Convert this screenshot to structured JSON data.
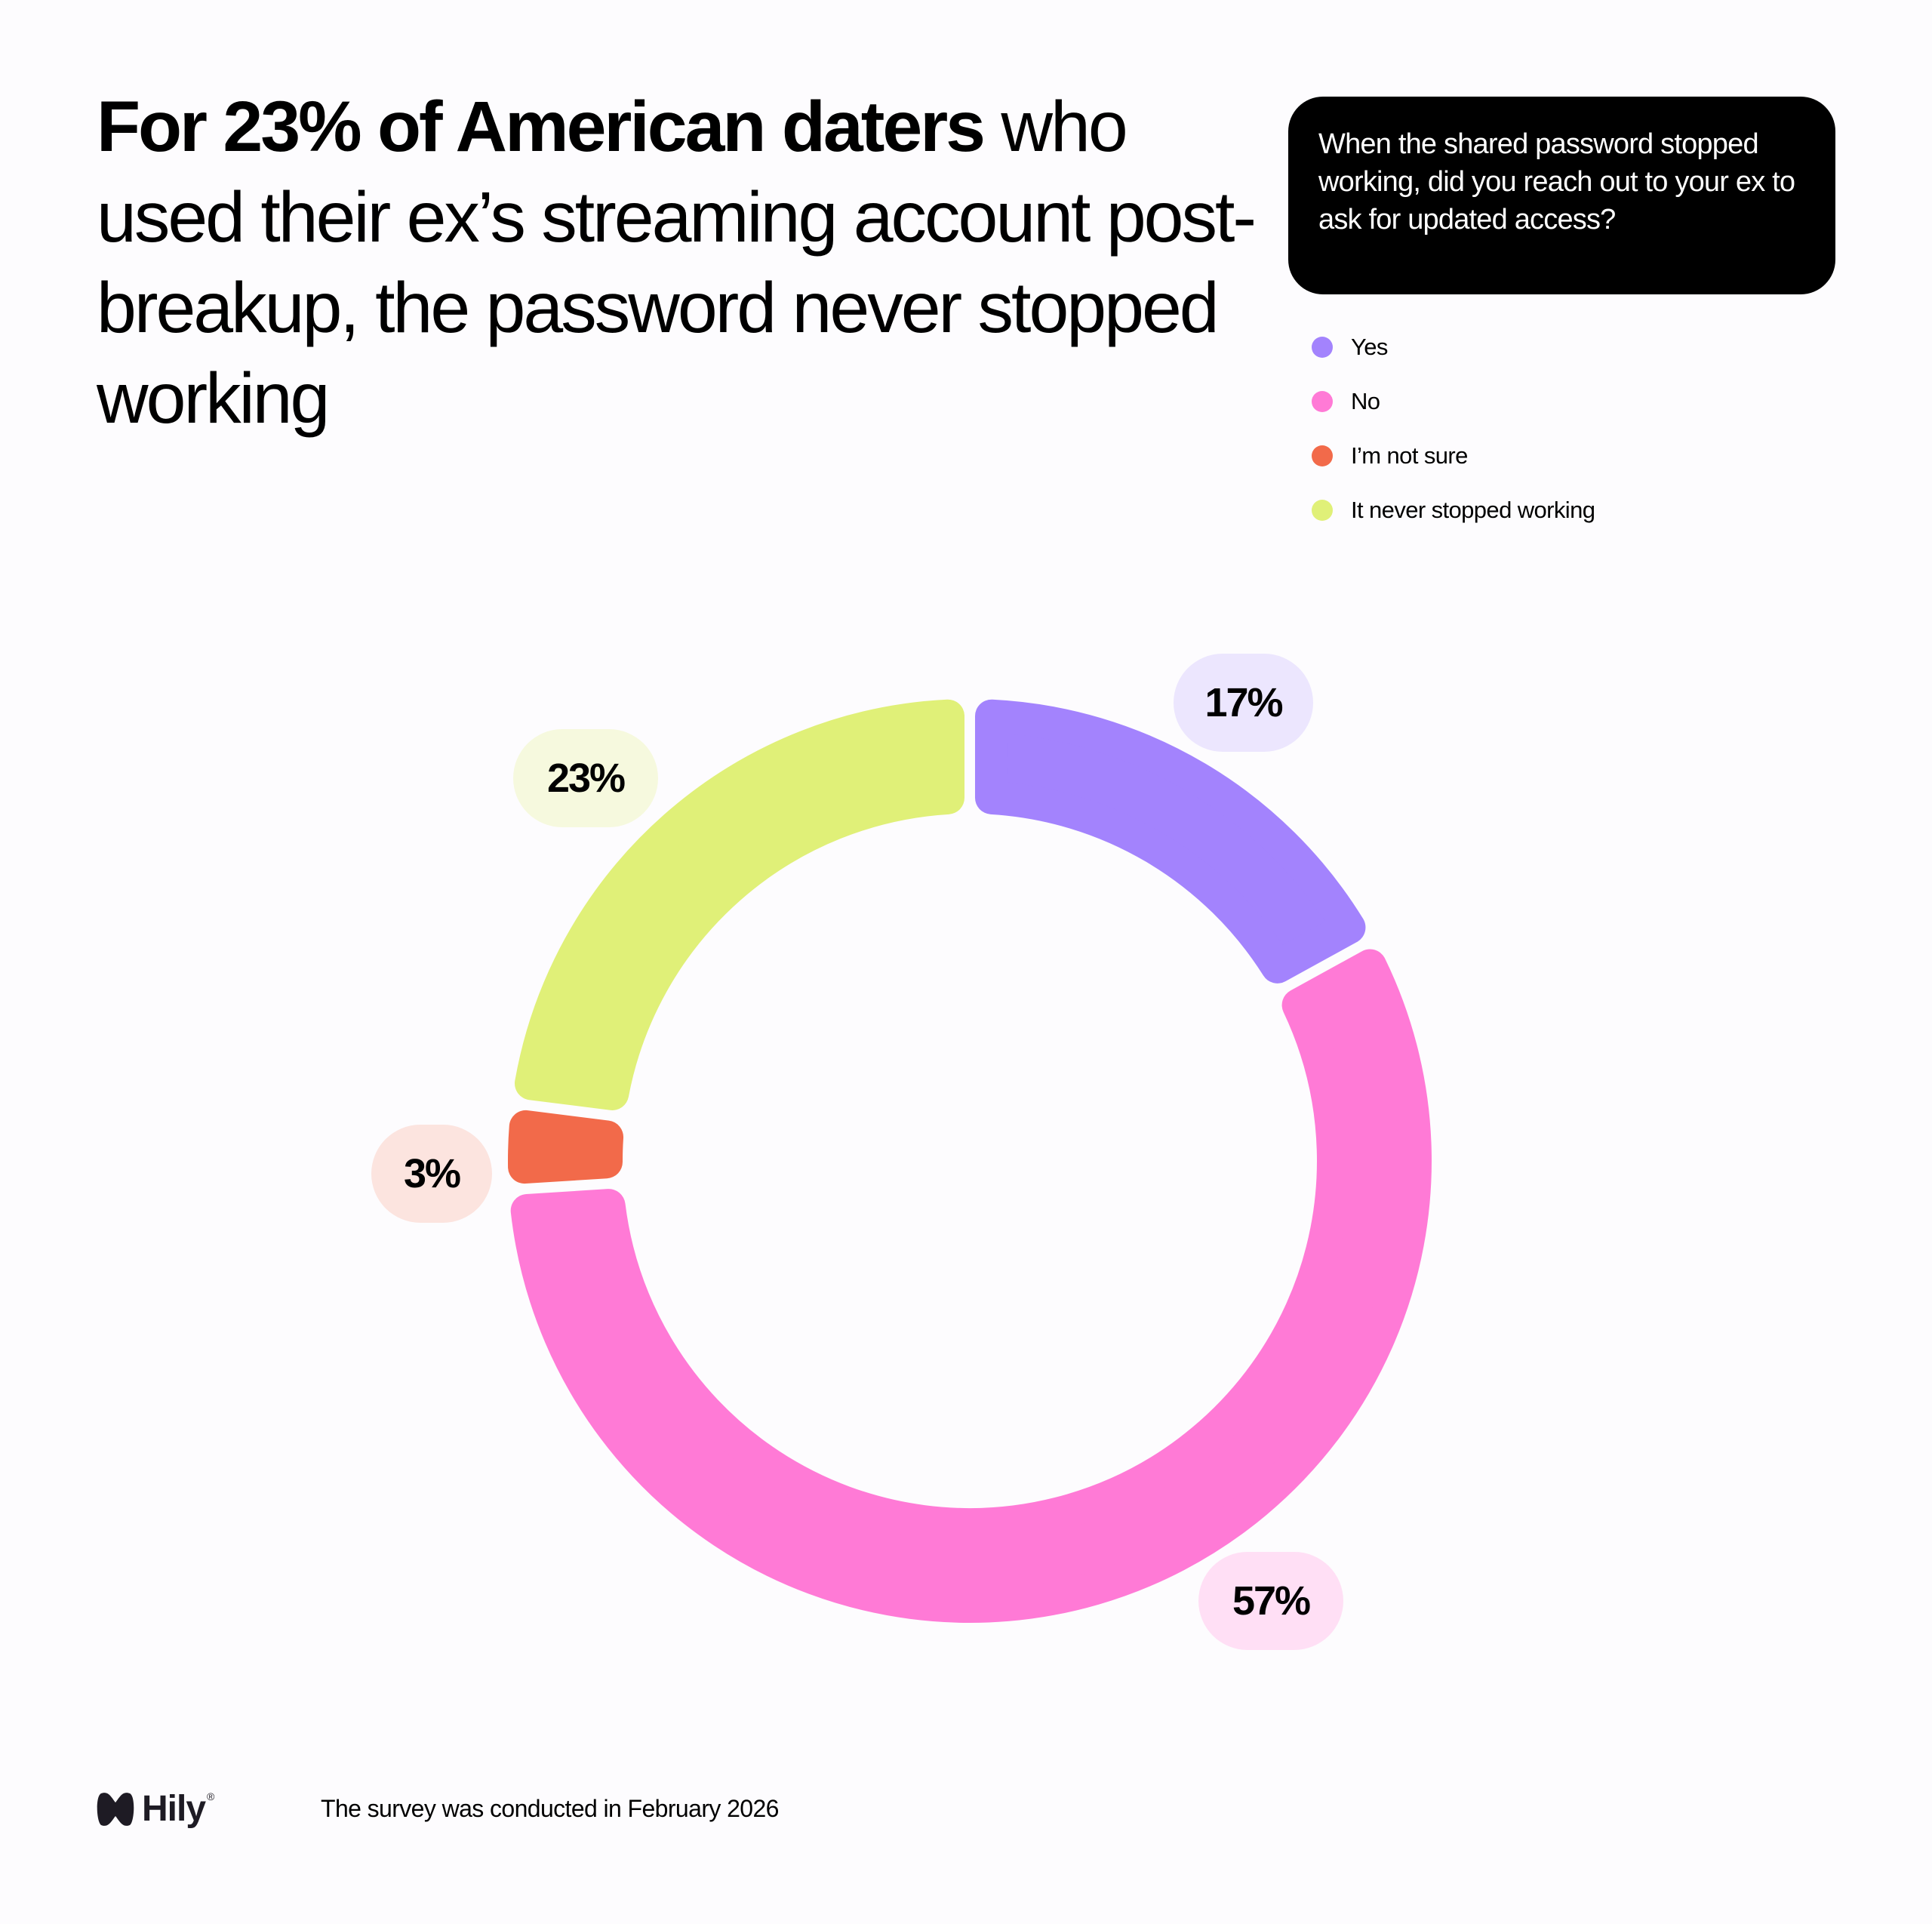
{
  "headline": {
    "strong": "For 23% of American daters",
    "rest": " who used their ex’s streaming account post-breakup, the password never stopped working"
  },
  "question": {
    "text": "When the shared password stopped working, did you reach out to your ex to ask for updated access?"
  },
  "legend": {
    "items": [
      {
        "label": "Yes",
        "color": "#a383fd"
      },
      {
        "label": "No",
        "color": "#ff7ad6"
      },
      {
        "label": "I’m not sure",
        "color": "#f26a4a"
      },
      {
        "label": "It never stopped working",
        "color": "#e0f078"
      }
    ]
  },
  "labels": {
    "yes": "17%",
    "no": "57%",
    "not_sure": "3%",
    "never": "23%"
  },
  "footer": {
    "brand": "Hily",
    "registered": "®",
    "note": "The survey was conducted in February 2026"
  },
  "chart_data": {
    "type": "pie",
    "variant": "donut",
    "title": "When the shared password stopped working, did you reach out to your ex to ask for updated access?",
    "categories": [
      "Yes",
      "No",
      "I’m not sure",
      "It never stopped working"
    ],
    "values": [
      17,
      57,
      3,
      23
    ],
    "unit": "%",
    "colors": [
      "#a383fd",
      "#ff7ad6",
      "#f26a4a",
      "#e0f078"
    ],
    "label_backgrounds": [
      "#ece6fe",
      "#ffdff5",
      "#fce4df",
      "#f6f9de"
    ],
    "start_angle_deg": 0,
    "direction": "clockwise",
    "legend_position": "top-right",
    "data_labels": [
      "17%",
      "57%",
      "3%",
      "23%"
    ]
  }
}
